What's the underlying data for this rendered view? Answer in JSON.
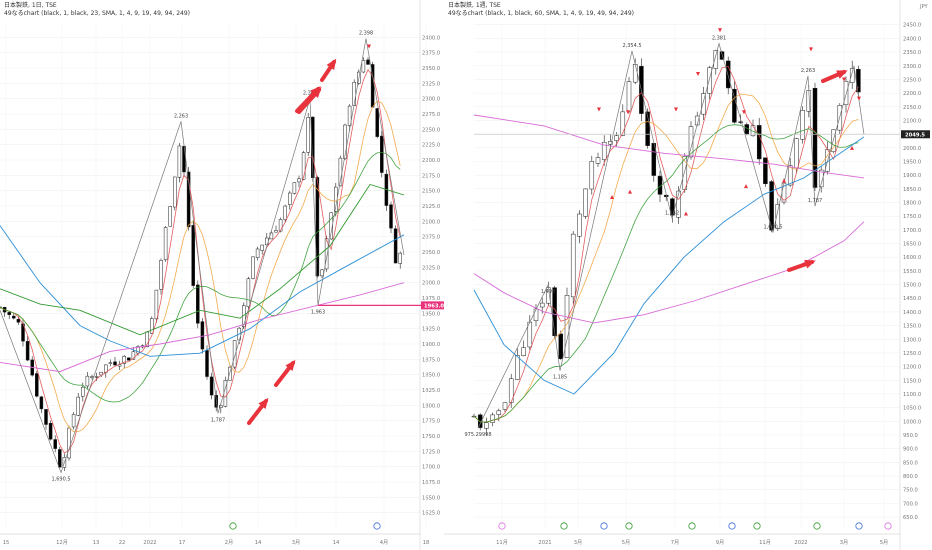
{
  "left_pane": {
    "header_line1": "日本製鉄, 1日, TSE",
    "header_line2": "49なるchart (black, 1, black, 23, SMA, 1, 4, 9, 19, 49, 94, 249)",
    "price_tag": "1963.0"
  },
  "right_pane": {
    "header_line1": "日本製鉄, 1週, TSE",
    "header_line2": "49なるchart (black, 1, black, 60, SMA, 1, 4, 9, 19, 49, 94, 249)",
    "price_tag": "2049.5",
    "axis_unit": "JPY"
  },
  "colors": {
    "up_candle": "#ffffff",
    "down_candle": "#000000",
    "ma_red": "#e04b4b",
    "ma_orange": "#f2a23c",
    "ma_green": "#2f9a2f",
    "ma_blue": "#2b8fd6",
    "ma_pink": "#d86ad8",
    "zigzag": "#777777",
    "arrow": "#e8323c",
    "support_line": "#e8327a"
  },
  "chart_data": [
    {
      "type": "candlestick",
      "title": "日本製鉄, 1日, TSE",
      "ylim": [
        1600,
        2425
      ],
      "y_ticks": [
        "1625.0",
        "1650.0",
        "1675.0",
        "1700.0",
        "1725.0",
        "1750.0",
        "1775.0",
        "1800.0",
        "1825.0",
        "1850.0",
        "1875.0",
        "1900.0",
        "1925.0",
        "1950.0",
        "1975.0",
        "2000.0",
        "2025.0",
        "2050.0",
        "2075.0",
        "2100.0",
        "2125.0",
        "2150.0",
        "2175.0",
        "2200.0",
        "2225.0",
        "2250.0",
        "2275.0",
        "2300.0",
        "2325.0",
        "2350.0",
        "2375.0",
        "2400.0"
      ],
      "x_ticks": [
        "15",
        "12月",
        "13",
        "22",
        "2022",
        "17",
        "2月",
        "14",
        "3月",
        "14",
        "4月",
        "18"
      ],
      "zigzag_labels": [
        {
          "text": "1,690.5",
          "x": 61,
          "y": 1690.5
        },
        {
          "text": "2,263",
          "x": 181,
          "y": 2263
        },
        {
          "text": "1,787",
          "x": 218,
          "y": 1787
        },
        {
          "text": "2,300",
          "x": 310,
          "y": 2300
        },
        {
          "text": "1,963",
          "x": 318,
          "y": 1963
        },
        {
          "text": "2,398",
          "x": 366,
          "y": 2398
        }
      ],
      "support_level": 1963.0
    },
    {
      "type": "candlestick",
      "title": "日本製鉄, 1週, TSE",
      "ylim": [
        610,
        2460
      ],
      "y_ticks": [
        "650.0",
        "700.0",
        "750.0",
        "800.0",
        "850.0",
        "900.0",
        "950.0",
        "1000.0",
        "1050.0",
        "1100.0",
        "1150.0",
        "1200.0",
        "1250.0",
        "1300.0",
        "1350.0",
        "1400.0",
        "1450.0",
        "1500.0",
        "1550.0",
        "1600.0",
        "1650.0",
        "1700.0",
        "1750.0",
        "1800.0",
        "1850.0",
        "1900.0",
        "1950.0",
        "2000.0",
        "2050.0",
        "2100.0",
        "2150.0",
        "2200.0",
        "2250.0",
        "2300.0",
        "2350.0",
        "2400.0",
        "2450.0"
      ],
      "x_ticks": [
        "11月",
        "2021",
        "3月",
        "5月",
        "7月",
        "9月",
        "11月",
        "2022",
        "3月",
        "5月"
      ],
      "zigzag_labels": [
        {
          "text": "975.29998",
          "x": 478,
          "y": 975
        },
        {
          "text": "1,498",
          "x": 548,
          "y": 1498
        },
        {
          "text": "1,185",
          "x": 560,
          "y": 1185
        },
        {
          "text": "2,354.5",
          "x": 632,
          "y": 2354.5
        },
        {
          "text": "1,742",
          "x": 672,
          "y": 1742
        },
        {
          "text": "2,381",
          "x": 719,
          "y": 2381
        },
        {
          "text": "1,690.5",
          "x": 773,
          "y": 1690.5
        },
        {
          "text": "2,263",
          "x": 808,
          "y": 2263
        },
        {
          "text": "1,787",
          "x": 815,
          "y": 1787
        }
      ]
    }
  ]
}
